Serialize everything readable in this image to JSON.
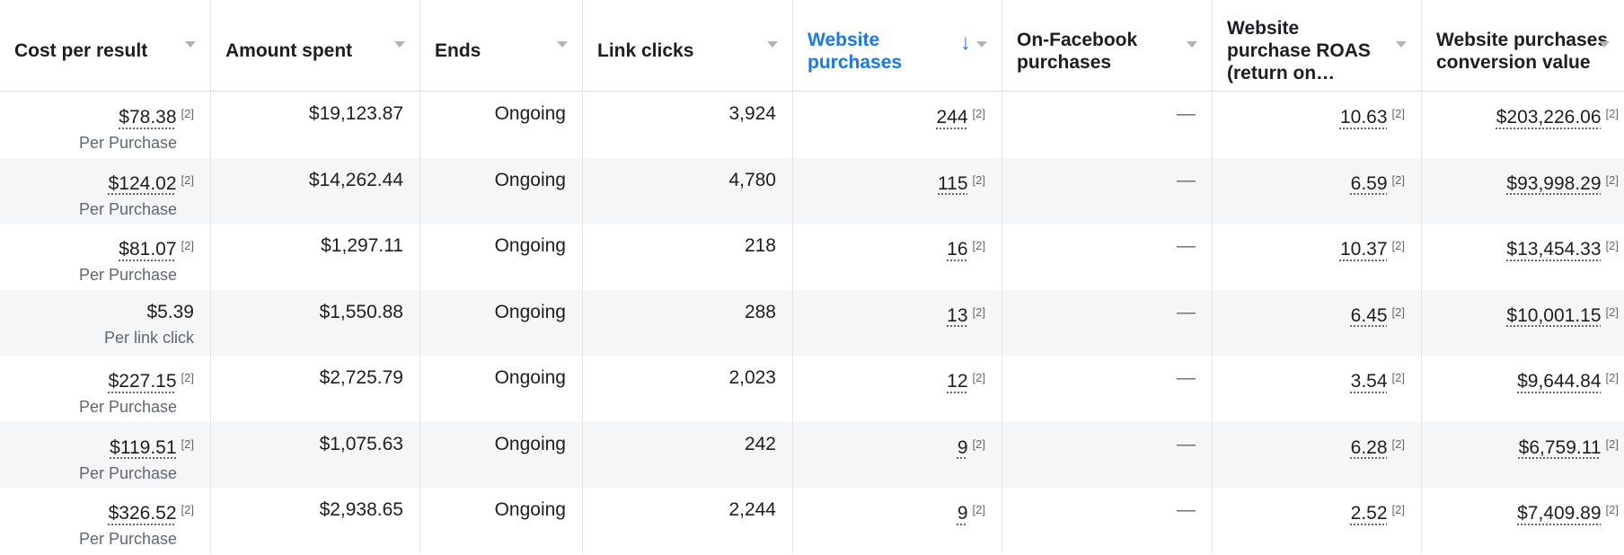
{
  "columns": [
    {
      "label": "Cost per result",
      "sorted": false
    },
    {
      "label": "Amount spent",
      "sorted": false
    },
    {
      "label": "Ends",
      "sorted": false
    },
    {
      "label": "Link clicks",
      "sorted": false
    },
    {
      "label": "Website purchases",
      "sorted": true,
      "sort_arrow": "↓"
    },
    {
      "label": "On-Facebook purchases",
      "sorted": false
    },
    {
      "label": "Website purchase ROAS (return on…",
      "sorted": false
    },
    {
      "label": "Website purchases conversion value",
      "sorted": false
    }
  ],
  "footnote_marker": "[2]",
  "rows": [
    {
      "cost": "$78.38",
      "cost_fn": true,
      "cost_sub": "Per Purchase",
      "spent": "$19,123.87",
      "ends": "Ongoing",
      "clicks": "3,924",
      "web_purchases": "244",
      "fb_purchases": "—",
      "roas": "10.63",
      "conv_value": "$203,226.06"
    },
    {
      "cost": "$124.02",
      "cost_fn": true,
      "cost_sub": "Per Purchase",
      "spent": "$14,262.44",
      "ends": "Ongoing",
      "clicks": "4,780",
      "web_purchases": "115",
      "fb_purchases": "—",
      "roas": "6.59",
      "conv_value": "$93,998.29"
    },
    {
      "cost": "$81.07",
      "cost_fn": true,
      "cost_sub": "Per Purchase",
      "spent": "$1,297.11",
      "ends": "Ongoing",
      "clicks": "218",
      "web_purchases": "16",
      "fb_purchases": "—",
      "roas": "10.37",
      "conv_value": "$13,454.33"
    },
    {
      "cost": "$5.39",
      "cost_fn": false,
      "cost_sub": "Per link click",
      "spent": "$1,550.88",
      "ends": "Ongoing",
      "clicks": "288",
      "web_purchases": "13",
      "fb_purchases": "—",
      "roas": "6.45",
      "conv_value": "$10,001.15"
    },
    {
      "cost": "$227.15",
      "cost_fn": true,
      "cost_sub": "Per Purchase",
      "spent": "$2,725.79",
      "ends": "Ongoing",
      "clicks": "2,023",
      "web_purchases": "12",
      "fb_purchases": "—",
      "roas": "3.54",
      "conv_value": "$9,644.84"
    },
    {
      "cost": "$119.51",
      "cost_fn": true,
      "cost_sub": "Per Purchase",
      "spent": "$1,075.63",
      "ends": "Ongoing",
      "clicks": "242",
      "web_purchases": "9",
      "fb_purchases": "—",
      "roas": "6.28",
      "conv_value": "$6,759.11"
    },
    {
      "cost": "$326.52",
      "cost_fn": true,
      "cost_sub": "Per Purchase",
      "spent": "$2,938.65",
      "ends": "Ongoing",
      "clicks": "2,244",
      "web_purchases": "9",
      "fb_purchases": "—",
      "roas": "2.52",
      "conv_value": "$7,409.89"
    }
  ],
  "colors": {
    "accent": "#1877f2",
    "row_alt": "#f5f6f7",
    "border": "#e4e6eb",
    "muted": "#65676b"
  }
}
